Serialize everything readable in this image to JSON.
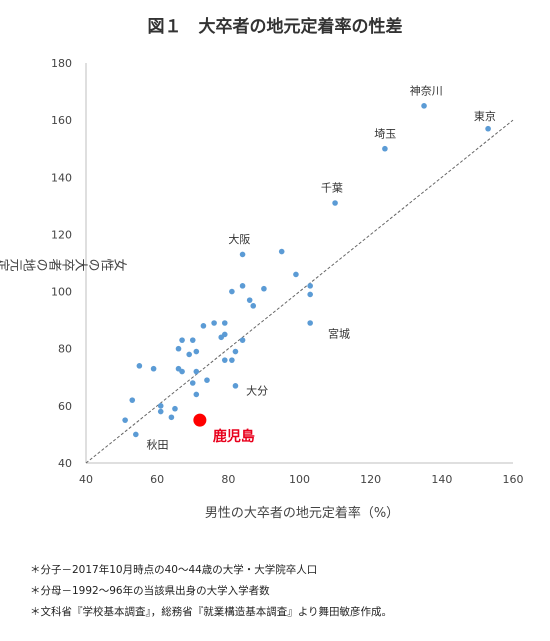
{
  "chart_data": {
    "type": "scatter",
    "title": "図１　大卒者の地元定着率の性差",
    "xlabel": "男性の大卒者の地元定着率（%）",
    "ylabel": "女性の大卒者の地元定着率（%）",
    "xlim": [
      40,
      160
    ],
    "ylim": [
      40,
      180
    ],
    "xticks": [
      "40",
      "60",
      "80",
      "100",
      "120",
      "140",
      "160"
    ],
    "yticks": [
      "40",
      "60",
      "80",
      "100",
      "120",
      "140",
      "160",
      "180"
    ],
    "grid": false,
    "reference_line": {
      "style": "dashed",
      "from": [
        40,
        40
      ],
      "to": [
        160,
        160
      ]
    },
    "point_color": "#5b9bd5",
    "highlight_color": "#ff0000",
    "points": [
      [
        135,
        165
      ],
      [
        153,
        157
      ],
      [
        124,
        150
      ],
      [
        110,
        131
      ],
      [
        95,
        114
      ],
      [
        84,
        113
      ],
      [
        99,
        106
      ],
      [
        103,
        102
      ],
      [
        103,
        99
      ],
      [
        90,
        101
      ],
      [
        84,
        102
      ],
      [
        81,
        100
      ],
      [
        86,
        97
      ],
      [
        87,
        95
      ],
      [
        103,
        89
      ],
      [
        79,
        89
      ],
      [
        76,
        89
      ],
      [
        73,
        88
      ],
      [
        78,
        84
      ],
      [
        84,
        83
      ],
      [
        79,
        85
      ],
      [
        70,
        83
      ],
      [
        67,
        83
      ],
      [
        66,
        80
      ],
      [
        71,
        79
      ],
      [
        69,
        78
      ],
      [
        82,
        79
      ],
      [
        79,
        76
      ],
      [
        81,
        76
      ],
      [
        66,
        73
      ],
      [
        67,
        72
      ],
      [
        71,
        72
      ],
      [
        74,
        69
      ],
      [
        82,
        67
      ],
      [
        70,
        68
      ],
      [
        55,
        74
      ],
      [
        59,
        73
      ],
      [
        71,
        64
      ],
      [
        61,
        60
      ],
      [
        53,
        62
      ],
      [
        65,
        59
      ],
      [
        61,
        58
      ],
      [
        64,
        56
      ],
      [
        51,
        55
      ],
      [
        54,
        50
      ]
    ],
    "highlight": {
      "label": "鹿児島",
      "x": 72,
      "y": 55
    },
    "annotations": [
      {
        "text": "神奈川",
        "x": 131,
        "y": 169
      },
      {
        "text": "東京",
        "x": 149,
        "y": 160
      },
      {
        "text": "埼玉",
        "x": 121,
        "y": 154
      },
      {
        "text": "千葉",
        "x": 106,
        "y": 135
      },
      {
        "text": "大阪",
        "x": 80,
        "y": 117
      },
      {
        "text": "宮城",
        "x": 108,
        "y": 84
      },
      {
        "text": "大分",
        "x": 85,
        "y": 64
      },
      {
        "text": "秋田",
        "x": 57,
        "y": 45
      }
    ]
  },
  "notes": [
    "＊分子－2017年10月時点の40～44歳の大学・大学院卒人口",
    "＊分母－1992～96年の当該県出身の大学入学者数",
    "＊文科省『学校基本調査』，総務省『就業構造基本調査』より舞田敏彦作成。"
  ]
}
